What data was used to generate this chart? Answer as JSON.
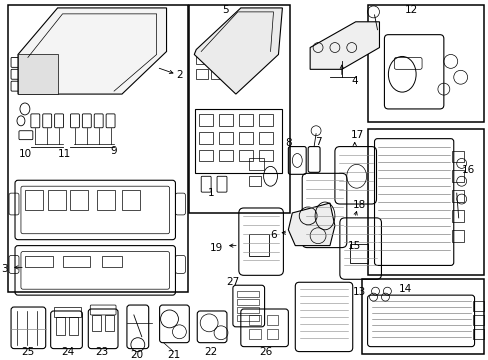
{
  "fig_width": 4.89,
  "fig_height": 3.6,
  "dpi": 100,
  "bg_color": "#ffffff",
  "image_data_b64": ""
}
